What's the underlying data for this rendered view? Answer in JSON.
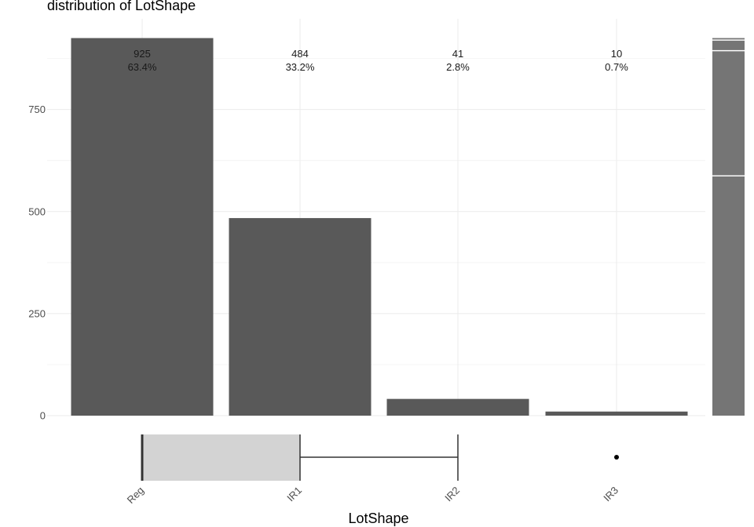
{
  "chart_data": {
    "type": "bar",
    "title": "distribution of LotShape",
    "xlabel": "LotShape",
    "ylabel": "",
    "categories": [
      "Reg",
      "IR1",
      "IR2",
      "IR3"
    ],
    "values": [
      925,
      484,
      41,
      10
    ],
    "bar_labels": [
      {
        "count": "925",
        "percent": "63.4%"
      },
      {
        "count": "484",
        "percent": "33.2%"
      },
      {
        "count": "41",
        "percent": "2.8%"
      },
      {
        "count": "10",
        "percent": "0.7%"
      }
    ],
    "y_ticks": [
      0,
      250,
      500,
      750
    ],
    "ylim": [
      0,
      925
    ],
    "grid": true,
    "colors": {
      "bar": "#595959",
      "stacked_bar": "#757575",
      "box": "#d3d3d3",
      "box_stroke": "#333333"
    },
    "stacked_overview": {
      "type": "stacked-bar",
      "segments_top_to_bottom": [
        "IR3",
        "IR2",
        "IR1",
        "Reg"
      ],
      "values_top_to_bottom": [
        10,
        41,
        484,
        925
      ]
    },
    "boxplot": {
      "x_scale": [
        "Reg",
        "IR1",
        "IR2",
        "IR3"
      ],
      "q1": "Reg",
      "median": "Reg",
      "q3": "IR1",
      "whisker_low": "Reg",
      "whisker_high": "IR2",
      "outliers": [
        "IR3"
      ]
    }
  }
}
